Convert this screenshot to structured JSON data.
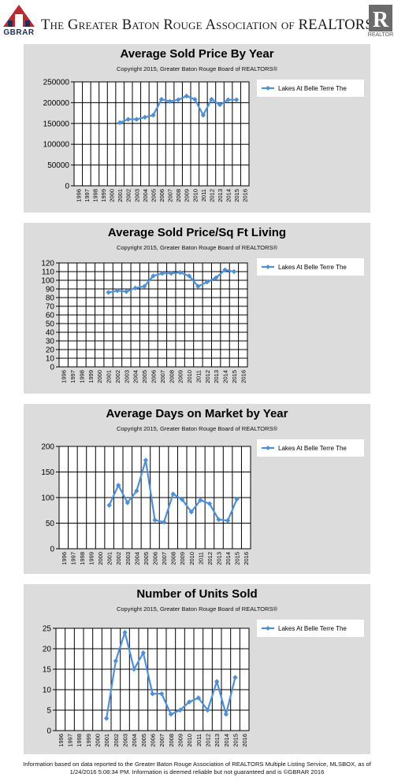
{
  "header": {
    "logo_left_text": "GBRAR",
    "org_name": "The Greater Baton Rouge Association of REALTORS",
    "registered_mark": "®",
    "logo_right_text": "REALTOR"
  },
  "colors": {
    "series": "#4a90e2",
    "panel": "#dcdcdc",
    "plot_bg": "#ffffff"
  },
  "chart_data": [
    {
      "type": "line",
      "title": "Average Sold Price By Year",
      "subtitle": "Copyright 2015, Greater Baton Rouge Board of REALTORS®",
      "x": [
        "1996",
        "1997",
        "1998",
        "1999",
        "2000",
        "2001",
        "2002",
        "2003",
        "2004",
        "2005",
        "2006",
        "2007",
        "2008",
        "2009",
        "2010",
        "2011",
        "2012",
        "2013",
        "2014",
        "2015",
        "2016"
      ],
      "yticks": [
        0,
        50000,
        100000,
        150000,
        200000,
        250000
      ],
      "ylim": [
        0,
        250000
      ],
      "legend": "top-right",
      "grid": true,
      "series": [
        {
          "name": "Lakes At Belle Terre The",
          "values": [
            null,
            null,
            null,
            null,
            null,
            152000,
            160000,
            160000,
            165000,
            170000,
            208000,
            203000,
            207000,
            216000,
            208000,
            170000,
            208000,
            195000,
            207000,
            207000,
            null
          ]
        }
      ]
    },
    {
      "type": "line",
      "title": "Average Sold Price/Sq Ft Living",
      "subtitle": "Copyright 2015, Greater Baton Rouge Board of REALTORS®",
      "x": [
        "1996",
        "1997",
        "1998",
        "1999",
        "2000",
        "2001",
        "2002",
        "2003",
        "2004",
        "2005",
        "2006",
        "2007",
        "2008",
        "2009",
        "2010",
        "2011",
        "2012",
        "2013",
        "2014",
        "2015",
        "2016"
      ],
      "yticks": [
        0,
        10,
        20,
        30,
        40,
        50,
        60,
        70,
        80,
        90,
        100,
        110,
        120
      ],
      "ylim": [
        0,
        120
      ],
      "legend": "top-right",
      "grid": true,
      "series": [
        {
          "name": "Lakes At Belle Terre The",
          "values": [
            null,
            null,
            null,
            null,
            null,
            86,
            88,
            87,
            91,
            93,
            105,
            108,
            108,
            109,
            105,
            93,
            98,
            103,
            112,
            110,
            null
          ]
        }
      ]
    },
    {
      "type": "line",
      "title": "Average Days on Market by Year",
      "subtitle": "Copyright 2015, Greater Baton Rouge Board of REALTORS®",
      "x": [
        "1996",
        "1997",
        "1998",
        "1999",
        "2000",
        "2001",
        "2002",
        "2003",
        "2004",
        "2005",
        "2006",
        "2007",
        "2008",
        "2009",
        "2010",
        "2011",
        "2012",
        "2013",
        "2014",
        "2015",
        "2016"
      ],
      "yticks": [
        0,
        50,
        100,
        150,
        200
      ],
      "ylim": [
        0,
        200
      ],
      "legend": "top-right",
      "grid": true,
      "series": [
        {
          "name": "Lakes At Belle Terre The",
          "values": [
            null,
            null,
            null,
            null,
            null,
            85,
            124,
            90,
            113,
            173,
            56,
            52,
            107,
            96,
            72,
            95,
            88,
            57,
            55,
            97,
            null
          ]
        }
      ]
    },
    {
      "type": "line",
      "title": "Number of Units Sold",
      "subtitle": "Copyright 2015, Greater Baton Rouge Board of REALTORS®",
      "x": [
        "1996",
        "1997",
        "1998",
        "1999",
        "2000",
        "2001",
        "2002",
        "2003",
        "2004",
        "2005",
        "2006",
        "2007",
        "2008",
        "2009",
        "2010",
        "2011",
        "2012",
        "2013",
        "2014",
        "2015",
        "2016"
      ],
      "yticks": [
        0,
        5,
        10,
        15,
        20,
        25
      ],
      "ylim": [
        0,
        25
      ],
      "legend": "top-right",
      "grid": true,
      "series": [
        {
          "name": "Lakes At Belle Terre The",
          "values": [
            null,
            null,
            null,
            null,
            null,
            3,
            17,
            24,
            15,
            19,
            9,
            9,
            4,
            5,
            7,
            8,
            5,
            12,
            4,
            13,
            null
          ]
        }
      ]
    }
  ],
  "footer": {
    "line1": "Information based on data reported to the Greater Baton Rouge Association of REALTORS Multiple Listing Service, MLSBOX, as of",
    "line2": "1/24/2016 5:08:34 PM. Information is deemed reliable but not guaranteed and is ©GBRAR 2016"
  }
}
